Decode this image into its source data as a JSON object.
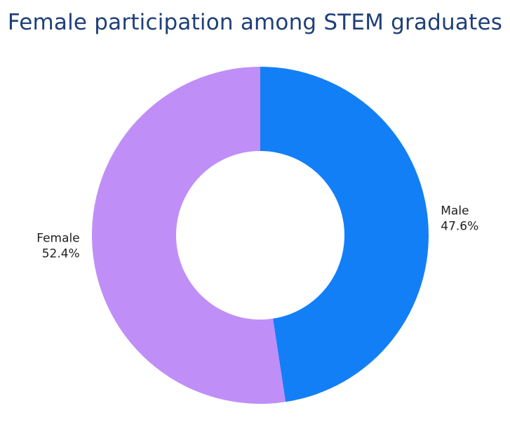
{
  "chart_data": {
    "type": "pie",
    "title": "Female participation among STEM graduates",
    "hole": true,
    "slices": [
      {
        "label": "Male",
        "value": 47.6,
        "value_label": "47.6%",
        "color": "#137ff7"
      },
      {
        "label": "Female",
        "value": 52.4,
        "value_label": "52.4%",
        "color": "#bf8ff7"
      }
    ]
  },
  "colors": {
    "title": "#1f3f78",
    "background": "#ffffff"
  }
}
